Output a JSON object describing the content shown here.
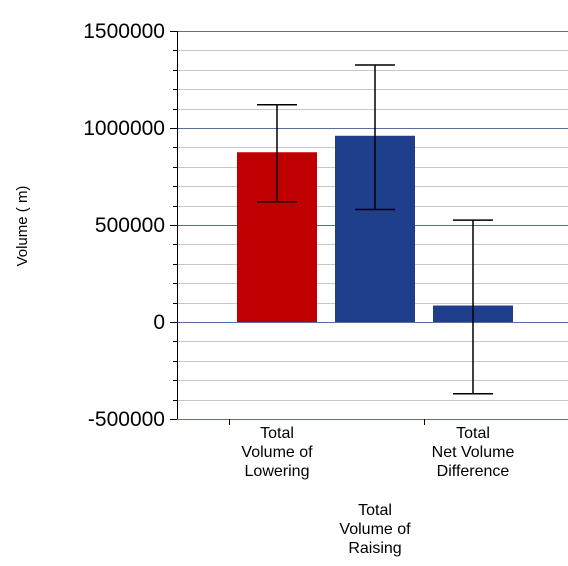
{
  "chart_data": {
    "type": "bar",
    "title": "",
    "xlabel": "",
    "ylabel": "Volume ( m)",
    "ylim": [
      -500000,
      1500000
    ],
    "yticks": [
      -500000,
      0,
      500000,
      1000000,
      1500000
    ],
    "ytick_labels": [
      "-500000",
      "0",
      "500000",
      "1000000",
      "1500000"
    ],
    "minor_gridlines_per_major": 5,
    "grid": true,
    "legend": "none",
    "categories": [
      [
        "Total",
        "Volume of",
        "Lowering"
      ],
      [
        "Total",
        "Volume of",
        "Raising"
      ],
      [
        "Total",
        "Net Volume",
        "Difference"
      ]
    ],
    "values": [
      875000,
      960000,
      85000
    ],
    "error_low": [
      620000,
      580000,
      -370000
    ],
    "error_high": [
      1120000,
      1325000,
      525000
    ],
    "colors": [
      "#c00000",
      "#1f3f8c",
      "#1f3f8c"
    ],
    "gridline_color": "#c8c8c8",
    "major_gridline_color": "#5a6e9c"
  }
}
